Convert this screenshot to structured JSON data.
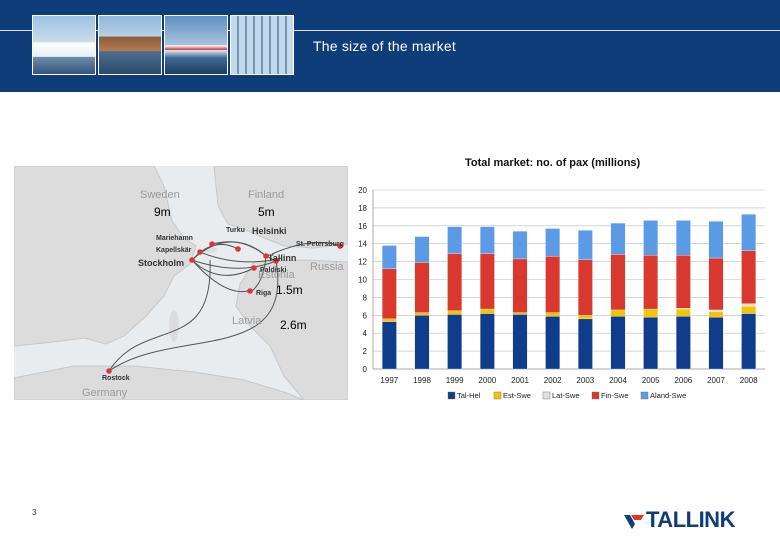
{
  "slide": {
    "title": "The size of the market",
    "page_number": "3",
    "brand": "TALLINK"
  },
  "map": {
    "labels": {
      "sweden": "Sweden",
      "finland": "Finland",
      "russia": "Russia",
      "estonia": "Estonia",
      "latvia": "Latvia",
      "germany": "Germany"
    },
    "cities": [
      "Turku",
      "Helsinki",
      "Mariehamn",
      "Kapellskär",
      "St. Petersburg",
      "Stockholm",
      "Tallinn",
      "Paldiski",
      "Riga",
      "Rostock"
    ],
    "volumes": [
      "9m",
      "5m",
      "1.5m",
      "2.6m"
    ]
  },
  "chart_data": {
    "type": "bar",
    "stacked": true,
    "title": "Total market: no. of pax (millions)",
    "categories": [
      "1997",
      "1998",
      "1999",
      "2000",
      "2001",
      "2002",
      "2003",
      "2004",
      "2005",
      "2006",
      "2007",
      "2008"
    ],
    "ylim": [
      0,
      20
    ],
    "yticks": [
      "0",
      "2",
      "4",
      "6",
      "8",
      "10",
      "12",
      "14",
      "16",
      "18",
      "20"
    ],
    "grid": true,
    "legend_position": "bottom",
    "series": [
      {
        "name": "Tal-Hel",
        "color": "#0f3d8c",
        "values": [
          5.3,
          6.0,
          6.1,
          6.2,
          6.1,
          5.9,
          5.6,
          5.9,
          5.8,
          5.9,
          5.8,
          6.2
        ]
      },
      {
        "name": "Est-Swe",
        "color": "#f2c500",
        "values": [
          0.3,
          0.3,
          0.4,
          0.5,
          0.2,
          0.4,
          0.4,
          0.7,
          0.9,
          0.8,
          0.6,
          0.8
        ]
      },
      {
        "name": "Lat-Swe",
        "color": "#e0e0e0",
        "values": [
          0.0,
          0.0,
          0.0,
          0.0,
          0.0,
          0.0,
          0.0,
          0.0,
          0.0,
          0.1,
          0.2,
          0.3
        ]
      },
      {
        "name": "Fin-Swe",
        "color": "#d9382e",
        "values": [
          5.6,
          5.6,
          6.4,
          6.2,
          6.0,
          6.3,
          6.2,
          6.2,
          6.0,
          5.9,
          5.8,
          5.9
        ]
      },
      {
        "name": "Aland-Swe",
        "color": "#5b9be6",
        "values": [
          2.6,
          2.9,
          3.0,
          3.0,
          3.1,
          3.1,
          3.3,
          3.5,
          3.9,
          3.9,
          4.1,
          4.1
        ]
      }
    ]
  }
}
